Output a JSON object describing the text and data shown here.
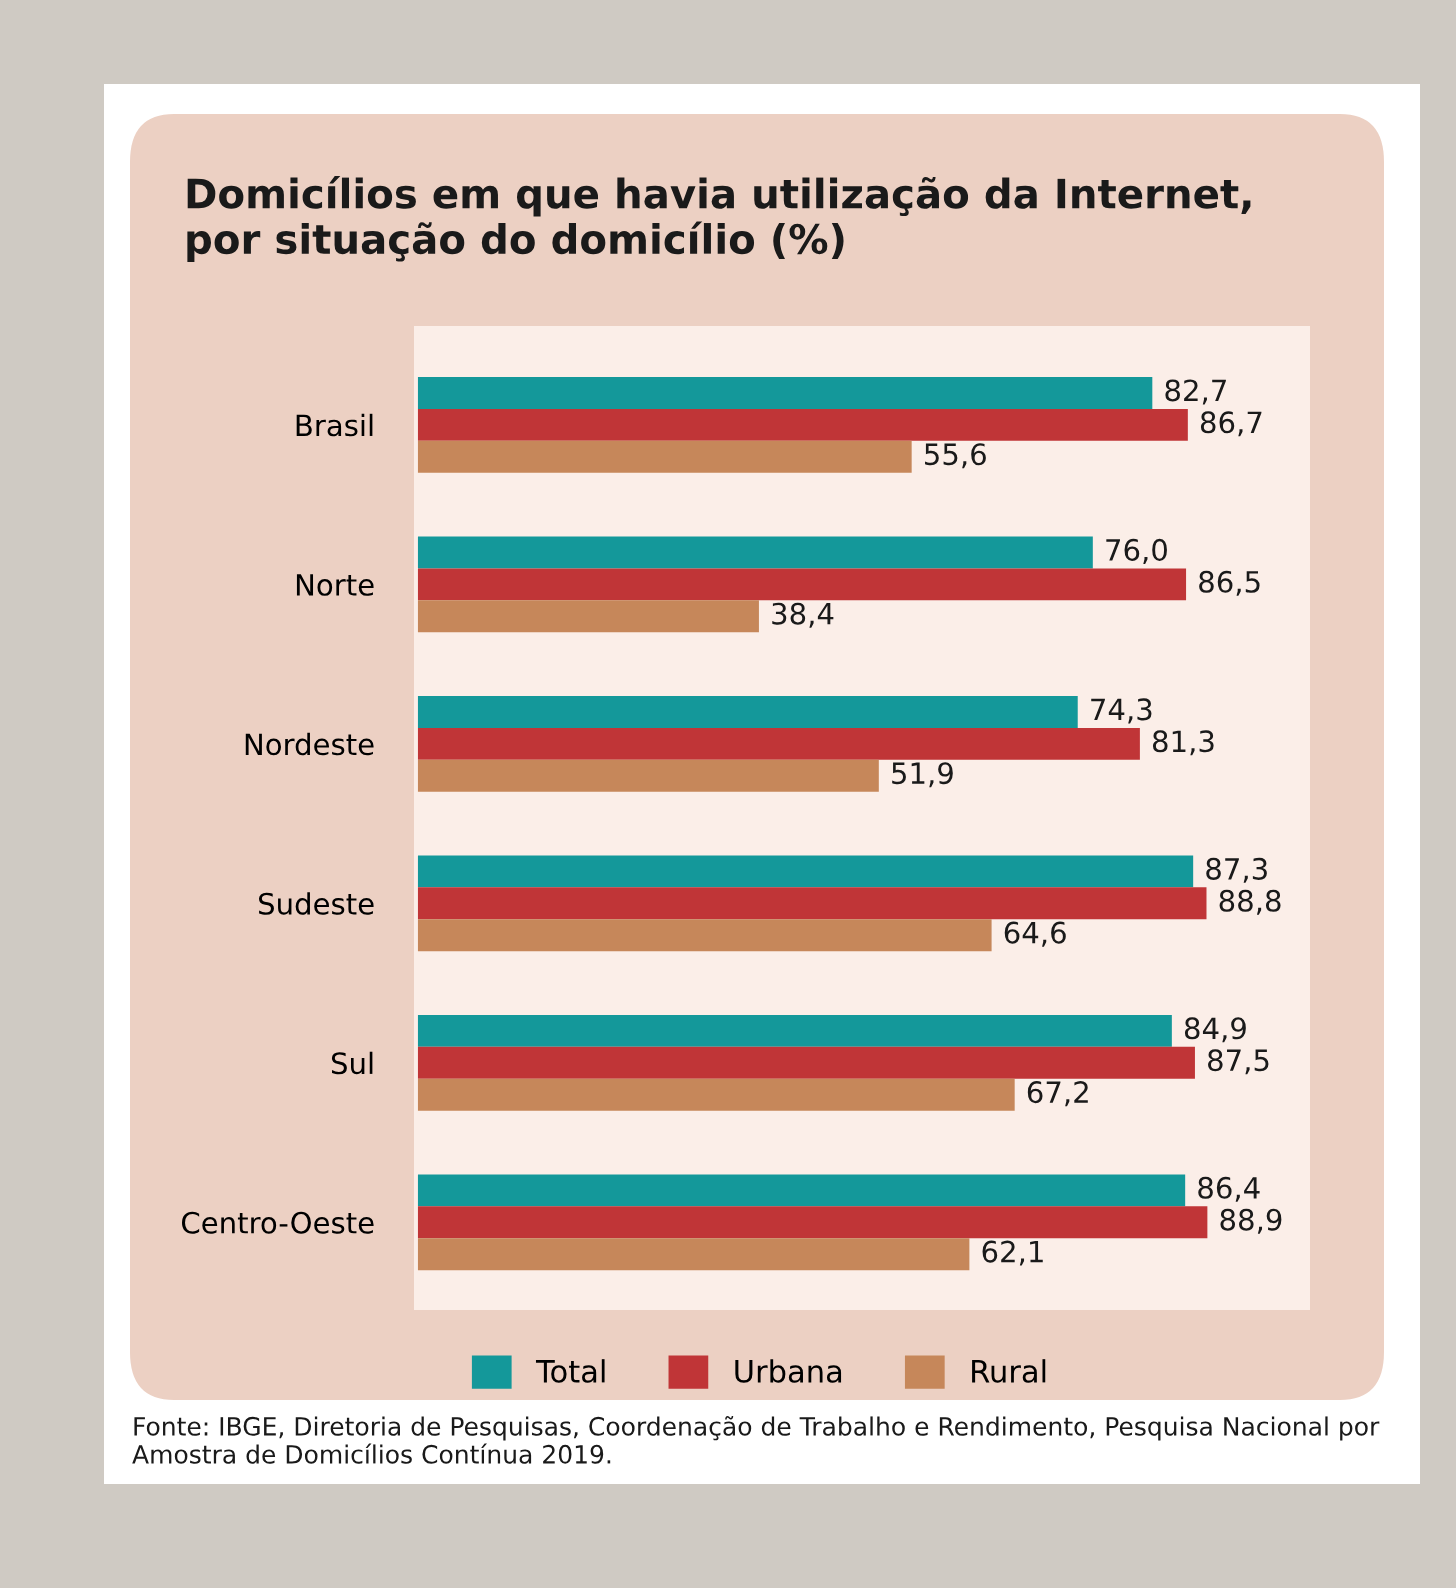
{
  "chart_data": {
    "type": "bar",
    "orientation": "horizontal",
    "title": "Domicílios em que havia utilização da Internet,\npor situação do domicílio (%)",
    "categories": [
      "Brasil",
      "Norte",
      "Nordeste",
      "Sudeste",
      "Sul",
      "Centro-Oeste"
    ],
    "series": [
      {
        "name": "Total",
        "color": "#14989a",
        "values": [
          82.7,
          76.0,
          74.3,
          87.3,
          84.9,
          86.4
        ],
        "value_labels": [
          "82,7",
          "76,0",
          "74,3",
          "87,3",
          "84,9",
          "86,4"
        ]
      },
      {
        "name": "Urbana",
        "color": "#c03537",
        "values": [
          86.7,
          86.5,
          81.3,
          88.8,
          87.5,
          88.9
        ],
        "value_labels": [
          "86,7",
          "86,5",
          "81,3",
          "88,8",
          "87,5",
          "88,9"
        ]
      },
      {
        "name": "Rural",
        "color": "#c6875a",
        "values": [
          55.6,
          38.4,
          51.9,
          64.6,
          67.2,
          62.1
        ],
        "value_labels": [
          "55,6",
          "38,4",
          "51,9",
          "64,6",
          "67,2",
          "62,1"
        ]
      }
    ],
    "legend": "bottom",
    "annotations": [
      "Fonte: IBGE, Diretoria de Pesquisas, Coordenação de Trabalho e Rendimento, Pesquisa Nacional por Amostra de Domicílios Contínua 2019."
    ]
  }
}
